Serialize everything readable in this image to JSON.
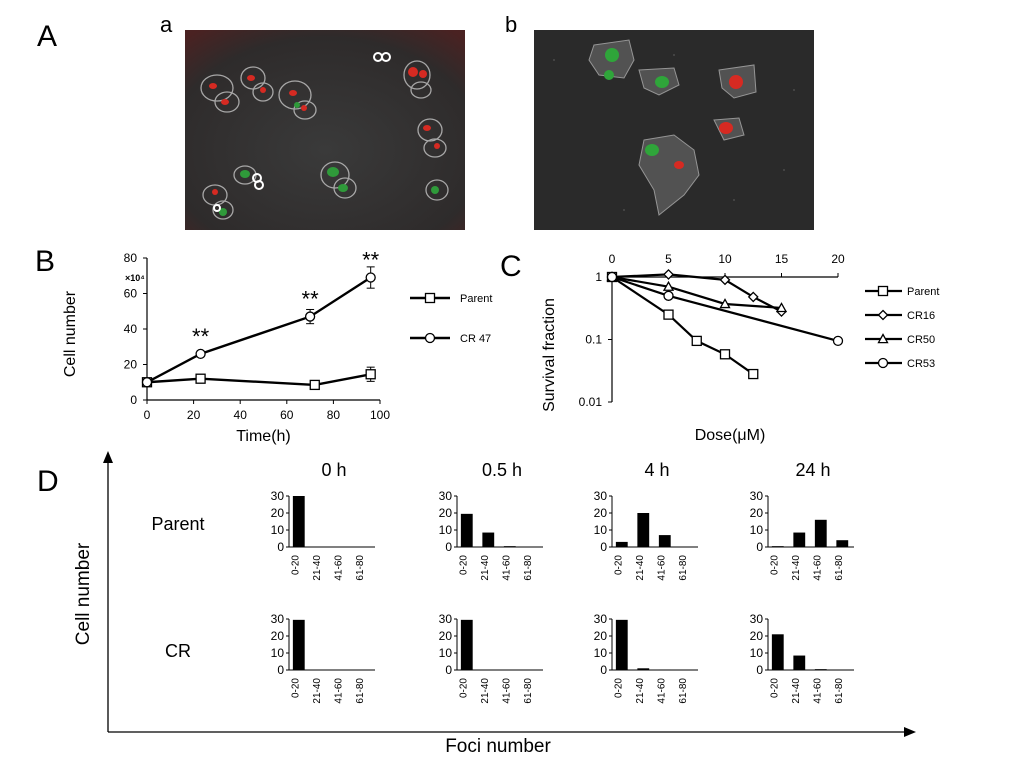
{
  "panels": {
    "A": "A",
    "B": "B",
    "C": "C",
    "D": "D"
  },
  "panel_a": {
    "sub_a": "a",
    "sub_b": "b"
  },
  "chart_data": [
    {
      "type": "line",
      "panel": "B",
      "xlabel": "Time(h)",
      "ylabel": "Cell number",
      "y_multiplier": "×10⁴",
      "xlim": [
        0,
        100
      ],
      "ylim": [
        0,
        80
      ],
      "xticks": [
        0,
        20,
        40,
        60,
        80,
        100
      ],
      "yticks": [
        0,
        20,
        40,
        60,
        80
      ],
      "series": [
        {
          "name": "Parent",
          "marker": "square",
          "x": [
            0,
            23,
            72,
            96
          ],
          "y": [
            10,
            12,
            8.5,
            14.5
          ],
          "err": [
            1.5,
            1.5,
            1.5,
            4
          ]
        },
        {
          "name": "CR 47",
          "marker": "circle",
          "x": [
            0,
            23,
            70,
            96
          ],
          "y": [
            10,
            26,
            47,
            69
          ],
          "err": [
            1,
            1.5,
            4,
            6
          ]
        }
      ],
      "annotations": [
        {
          "x": 23,
          "y": 26,
          "text": "**"
        },
        {
          "x": 70,
          "y": 47,
          "text": "**"
        },
        {
          "x": 96,
          "y": 69,
          "text": "**"
        }
      ]
    },
    {
      "type": "line",
      "panel": "C",
      "xlabel": "Dose(μM)",
      "ylabel": "Survival fraction",
      "yscale": "log",
      "xlim": [
        0,
        20
      ],
      "ylim": [
        0.01,
        1
      ],
      "xticks": [
        0,
        5,
        10,
        15,
        20
      ],
      "yticks": [
        1,
        0.1,
        0.01
      ],
      "ytick_labels": [
        "1",
        "0.1",
        "0.01"
      ],
      "legend_placement": "right",
      "series": [
        {
          "name": "Parent",
          "marker": "square",
          "x": [
            0,
            5,
            7.5,
            10,
            12.5
          ],
          "y": [
            1,
            0.25,
            0.095,
            0.058,
            0.028
          ]
        },
        {
          "name": "CR16",
          "marker": "diamond",
          "x": [
            0,
            5,
            10,
            12.5,
            15
          ],
          "y": [
            1,
            1.1,
            0.9,
            0.48,
            0.28
          ]
        },
        {
          "name": "CR50",
          "marker": "triangle",
          "x": [
            0,
            5,
            10,
            15
          ],
          "y": [
            1,
            0.7,
            0.37,
            0.32
          ]
        },
        {
          "name": "CR53",
          "marker": "circle",
          "x": [
            0,
            5,
            20
          ],
          "y": [
            1,
            0.5,
            0.095
          ]
        }
      ]
    },
    {
      "type": "bar",
      "panel": "D",
      "xlabel": "Foci  number",
      "ylabel": "Cell  number",
      "categories": [
        "0-20",
        "21-40",
        "41-60",
        "61-80"
      ],
      "yticks": [
        0,
        10,
        20,
        30
      ],
      "ylim": [
        0,
        30
      ],
      "rows": [
        "Parent",
        "CR"
      ],
      "columns": [
        "0 h",
        "0.5 h",
        "4 h",
        "24 h"
      ],
      "subplots": [
        {
          "row": "Parent",
          "time": "0 h",
          "values": [
            30,
            0,
            0,
            0
          ]
        },
        {
          "row": "Parent",
          "time": "0.5 h",
          "values": [
            19.5,
            8.5,
            0.5,
            0
          ]
        },
        {
          "row": "Parent",
          "time": "4 h",
          "values": [
            3,
            20,
            7,
            0
          ]
        },
        {
          "row": "Parent",
          "time": "24 h",
          "values": [
            0.5,
            8.5,
            16,
            4
          ]
        },
        {
          "row": "CR",
          "time": "0 h",
          "values": [
            29.5,
            0,
            0,
            0
          ]
        },
        {
          "row": "CR",
          "time": "0.5 h",
          "values": [
            29.5,
            0,
            0,
            0
          ]
        },
        {
          "row": "CR",
          "time": "4 h",
          "values": [
            29.5,
            1,
            0.3,
            0.2
          ]
        },
        {
          "row": "CR",
          "time": "24 h",
          "values": [
            21,
            8.5,
            0.5,
            0
          ]
        }
      ]
    }
  ]
}
